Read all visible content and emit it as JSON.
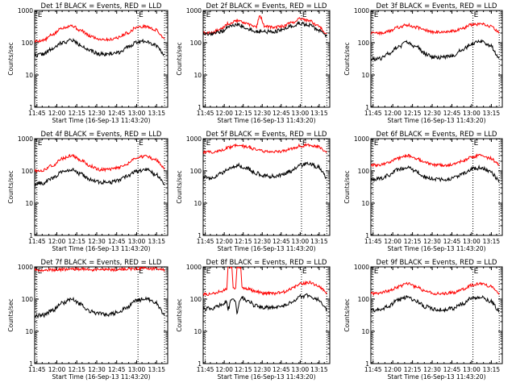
{
  "colors": {
    "events": "#000000",
    "lld": "#ff0000",
    "axis": "#000000",
    "background": "#ffffff"
  },
  "chart_data": [
    {
      "type": "line",
      "title": "Det 1f BLACK = Events, RED = LLD",
      "xlabel": "Start Time (16-Sep-13 11:43:20)",
      "ylabel": "Counts/sec",
      "xlim": [
        "11:43:20",
        "13:23:20"
      ],
      "ylim": [
        1,
        1000
      ],
      "yscale": "log",
      "xtick_labels": [
        "11:45",
        "12:00",
        "12:15",
        "12:30",
        "12:45",
        "13:00",
        "13:15"
      ],
      "ytick_labels": [
        "1",
        "10",
        "100",
        "1000"
      ],
      "markers": [
        {
          "time": "11:45",
          "label": "E"
        },
        {
          "time": "13:01",
          "label": "E"
        },
        {
          "time": "13:21",
          "label": ""
        }
      ],
      "x": [
        "11:43",
        "11:50",
        "11:57",
        "12:04",
        "12:11",
        "12:18",
        "12:25",
        "12:32",
        "12:39",
        "12:46",
        "12:53",
        "13:00",
        "13:07",
        "13:14",
        "13:21"
      ],
      "series": [
        {
          "name": "LLD",
          "color": "red",
          "values": [
            110,
            120,
            180,
            290,
            340,
            240,
            160,
            130,
            125,
            145,
            200,
            300,
            320,
            250,
            140
          ]
        },
        {
          "name": "Events",
          "color": "black",
          "values": [
            40,
            45,
            65,
            100,
            120,
            85,
            55,
            45,
            45,
            50,
            70,
            105,
            115,
            85,
            45
          ]
        }
      ]
    },
    {
      "type": "line",
      "title": "Det 2f BLACK = Events, RED = LLD",
      "xlabel": "Start Time (16-Sep-13 11:43:20)",
      "ylabel": "Counts/sec",
      "xlim": [
        "11:43:20",
        "13:23:20"
      ],
      "ylim": [
        1,
        1000
      ],
      "yscale": "log",
      "xtick_labels": [
        "11:45",
        "12:00",
        "12:15",
        "12:30",
        "12:45",
        "13:00",
        "13:15"
      ],
      "ytick_labels": [
        "1",
        "10",
        "100",
        "1000"
      ],
      "markers": [
        {
          "time": "11:45",
          "label": "E"
        },
        {
          "time": "13:01",
          "label": "E"
        },
        {
          "time": "13:21",
          "label": ""
        }
      ],
      "x": [
        "11:43",
        "11:50",
        "11:57",
        "12:04",
        "12:11",
        "12:18",
        "12:25",
        "12:28",
        "12:32",
        "12:39",
        "12:46",
        "12:53",
        "13:00",
        "13:07",
        "13:14",
        "13:21"
      ],
      "series": [
        {
          "name": "LLD",
          "color": "red",
          "values": [
            200,
            200,
            260,
            400,
            480,
            380,
            300,
            650,
            330,
            300,
            320,
            420,
            560,
            480,
            330,
            200
          ]
        },
        {
          "name": "Events",
          "color": "black",
          "values": [
            180,
            180,
            220,
            320,
            360,
            280,
            220,
            230,
            220,
            220,
            250,
            320,
            400,
            350,
            250,
            160
          ]
        }
      ]
    },
    {
      "type": "line",
      "title": "Det 3f BLACK = Events, RED = LLD",
      "xlabel": "Start Time (16-Sep-13 11:43:20)",
      "ylabel": "Counts/sec",
      "xlim": [
        "11:43:20",
        "13:23:20"
      ],
      "ylim": [
        1,
        1000
      ],
      "yscale": "log",
      "xtick_labels": [
        "11:45",
        "12:00",
        "12:15",
        "12:30",
        "12:45",
        "13:00",
        "13:15"
      ],
      "ytick_labels": [
        "1",
        "10",
        "100",
        "1000"
      ],
      "markers": [
        {
          "time": "11:45",
          "label": "E"
        },
        {
          "time": "13:01",
          "label": "E"
        },
        {
          "time": "13:21",
          "label": ""
        }
      ],
      "x": [
        "11:43",
        "11:50",
        "11:57",
        "12:04",
        "12:11",
        "12:18",
        "12:25",
        "12:32",
        "12:39",
        "12:46",
        "12:53",
        "13:00",
        "13:07",
        "13:14",
        "13:21"
      ],
      "series": [
        {
          "name": "LLD",
          "color": "red",
          "values": [
            200,
            200,
            230,
            300,
            360,
            300,
            240,
            210,
            210,
            230,
            280,
            360,
            380,
            320,
            210
          ]
        },
        {
          "name": "Events",
          "color": "black",
          "values": [
            30,
            32,
            45,
            75,
            100,
            75,
            45,
            35,
            35,
            40,
            60,
            95,
            110,
            80,
            35
          ]
        }
      ]
    },
    {
      "type": "line",
      "title": "Det 4f BLACK = Events, RED = LLD",
      "xlabel": "Start Time (16-Sep-13 11:43:20)",
      "ylabel": "Counts/sec",
      "xlim": [
        "11:43:20",
        "13:23:20"
      ],
      "ylim": [
        1,
        1000
      ],
      "yscale": "log",
      "xtick_labels": [
        "11:45",
        "12:00",
        "12:15",
        "12:30",
        "12:45",
        "13:00",
        "13:15"
      ],
      "ytick_labels": [
        "1",
        "10",
        "100",
        "1000"
      ],
      "markers": [
        {
          "time": "11:45",
          "label": "E"
        },
        {
          "time": "13:01",
          "label": "E"
        },
        {
          "time": "13:21",
          "label": ""
        }
      ],
      "x": [
        "11:43",
        "11:50",
        "11:57",
        "12:04",
        "12:11",
        "12:18",
        "12:25",
        "12:32",
        "12:39",
        "12:46",
        "12:53",
        "13:00",
        "13:07",
        "13:14",
        "13:21"
      ],
      "series": [
        {
          "name": "LLD",
          "color": "red",
          "values": [
            100,
            105,
            150,
            240,
            300,
            220,
            140,
            110,
            110,
            125,
            170,
            260,
            290,
            220,
            120
          ]
        },
        {
          "name": "Events",
          "color": "black",
          "values": [
            40,
            42,
            60,
            95,
            110,
            80,
            52,
            45,
            44,
            50,
            68,
            100,
            110,
            80,
            40
          ]
        }
      ]
    },
    {
      "type": "line",
      "title": "Det 5f BLACK = Events, RED = LLD",
      "xlabel": "Start Time (16-Sep-13 11:43:20)",
      "ylabel": "Counts/sec",
      "xlim": [
        "11:43:20",
        "13:23:20"
      ],
      "ylim": [
        1,
        1000
      ],
      "yscale": "log",
      "xtick_labels": [
        "11:45",
        "12:00",
        "12:15",
        "12:30",
        "12:45",
        "13:00",
        "13:15"
      ],
      "ytick_labels": [
        "1",
        "10",
        "100",
        "1000"
      ],
      "markers": [
        {
          "time": "11:45",
          "label": "E"
        },
        {
          "time": "13:01",
          "label": "E"
        },
        {
          "time": "13:21",
          "label": ""
        }
      ],
      "x": [
        "11:43",
        "11:50",
        "11:57",
        "12:04",
        "12:11",
        "12:18",
        "12:25",
        "12:32",
        "12:39",
        "12:46",
        "12:53",
        "13:00",
        "13:07",
        "13:14",
        "13:21"
      ],
      "series": [
        {
          "name": "LLD",
          "color": "red",
          "values": [
            380,
            380,
            420,
            540,
            620,
            560,
            460,
            400,
            390,
            410,
            480,
            600,
            640,
            560,
            400
          ]
        },
        {
          "name": "Events",
          "color": "black",
          "values": [
            60,
            62,
            80,
            120,
            150,
            120,
            85,
            70,
            68,
            75,
            100,
            150,
            170,
            130,
            65
          ]
        }
      ]
    },
    {
      "type": "line",
      "title": "Det 6f BLACK = Events, RED = LLD",
      "xlabel": "Start Time (16-Sep-13 11:43:20)",
      "ylabel": "Counts/sec",
      "xlim": [
        "11:43:20",
        "13:23:20"
      ],
      "ylim": [
        1,
        1000
      ],
      "yscale": "log",
      "xtick_labels": [
        "11:45",
        "12:00",
        "12:15",
        "12:30",
        "12:45",
        "13:00",
        "13:15"
      ],
      "ytick_labels": [
        "1",
        "10",
        "100",
        "1000"
      ],
      "markers": [
        {
          "time": "11:45",
          "label": "E"
        },
        {
          "time": "13:01",
          "label": "E"
        },
        {
          "time": "13:21",
          "label": ""
        }
      ],
      "x": [
        "11:43",
        "11:50",
        "11:57",
        "12:04",
        "12:11",
        "12:18",
        "12:25",
        "12:32",
        "12:39",
        "12:46",
        "12:53",
        "13:00",
        "13:07",
        "13:14",
        "13:21"
      ],
      "series": [
        {
          "name": "LLD",
          "color": "red",
          "values": [
            150,
            150,
            180,
            250,
            300,
            240,
            180,
            155,
            150,
            160,
            200,
            270,
            310,
            250,
            160
          ]
        },
        {
          "name": "Events",
          "color": "black",
          "values": [
            55,
            57,
            75,
            110,
            125,
            95,
            65,
            55,
            54,
            60,
            80,
            115,
            125,
            95,
            50
          ]
        }
      ]
    },
    {
      "type": "line",
      "title": "Det 7f BLACK = Events, RED = LLD",
      "xlabel": "Start Time (16-Sep-13 11:43:20)",
      "ylabel": "Counts/sec",
      "xlim": [
        "11:43:20",
        "13:23:20"
      ],
      "ylim": [
        1,
        1000
      ],
      "yscale": "log",
      "xtick_labels": [
        "11:45",
        "12:00",
        "12:15",
        "12:30",
        "12:45",
        "13:00",
        "13:15"
      ],
      "ytick_labels": [
        "1",
        "10",
        "100",
        "1000"
      ],
      "markers": [
        {
          "time": "11:45",
          "label": "E"
        },
        {
          "time": "13:01",
          "label": "E"
        },
        {
          "time": "13:21",
          "label": ""
        }
      ],
      "x": [
        "11:43",
        "11:50",
        "11:57",
        "12:04",
        "12:11",
        "12:18",
        "12:25",
        "12:32",
        "12:39",
        "12:46",
        "12:53",
        "13:00",
        "13:07",
        "13:14",
        "13:21"
      ],
      "series": [
        {
          "name": "LLD",
          "color": "red",
          "values": [
            780,
            790,
            800,
            830,
            860,
            840,
            820,
            810,
            810,
            820,
            850,
            880,
            900,
            870,
            800
          ]
        },
        {
          "name": "Events",
          "color": "black",
          "values": [
            30,
            32,
            45,
            75,
            100,
            70,
            42,
            35,
            34,
            38,
            58,
            90,
            105,
            78,
            35
          ]
        }
      ]
    },
    {
      "type": "line",
      "title": "Det 8f BLACK = Events, RED = LLD",
      "xlabel": "Start Time (16-Sep-13 11:43:20)",
      "ylabel": "Counts/sec",
      "xlim": [
        "11:43:20",
        "13:23:20"
      ],
      "ylim": [
        1,
        1000
      ],
      "yscale": "log",
      "xtick_labels": [
        "11:45",
        "12:00",
        "12:15",
        "12:30",
        "12:45",
        "13:00",
        "13:15"
      ],
      "ytick_labels": [
        "1",
        "10",
        "100",
        "1000"
      ],
      "markers": [
        {
          "time": "11:45",
          "label": "E"
        },
        {
          "time": "13:01",
          "label": "E"
        },
        {
          "time": "13:21",
          "label": ""
        }
      ],
      "x": [
        "11:43",
        "11:50",
        "11:57",
        "12:02",
        "12:03",
        "12:06",
        "12:07",
        "12:09",
        "12:10",
        "12:13",
        "12:14",
        "12:18",
        "12:25",
        "12:32",
        "12:39",
        "12:46",
        "12:53",
        "13:00",
        "13:07",
        "13:14",
        "13:21"
      ],
      "series": [
        {
          "name": "LLD",
          "color": "red",
          "values": [
            140,
            145,
            170,
            200,
            1000,
            1000,
            210,
            220,
            1000,
            1000,
            230,
            210,
            170,
            150,
            150,
            165,
            210,
            300,
            330,
            260,
            160
          ]
        },
        {
          "name": "Events",
          "color": "black",
          "values": [
            50,
            52,
            65,
            80,
            50,
            100,
            90,
            80,
            40,
            100,
            110,
            90,
            62,
            55,
            54,
            60,
            80,
            120,
            130,
            95,
            50
          ]
        }
      ]
    },
    {
      "type": "line",
      "title": "Det 9f BLACK = Events, RED = LLD",
      "xlabel": "Start Time (16-Sep-13 11:43:20)",
      "ylabel": "Counts/sec",
      "xlim": [
        "11:43:20",
        "13:23:20"
      ],
      "ylim": [
        1,
        1000
      ],
      "yscale": "log",
      "xtick_labels": [
        "11:45",
        "12:00",
        "12:15",
        "12:30",
        "12:45",
        "13:00",
        "13:15"
      ],
      "ytick_labels": [
        "1",
        "10",
        "100",
        "1000"
      ],
      "markers": [
        {
          "time": "11:45",
          "label": "E"
        },
        {
          "time": "13:01",
          "label": "E"
        },
        {
          "time": "13:21",
          "label": ""
        }
      ],
      "x": [
        "11:43",
        "11:50",
        "11:57",
        "12:04",
        "12:11",
        "12:18",
        "12:25",
        "12:32",
        "12:39",
        "12:46",
        "12:53",
        "13:00",
        "13:07",
        "13:14",
        "13:21"
      ],
      "series": [
        {
          "name": "LLD",
          "color": "red",
          "values": [
            150,
            150,
            180,
            240,
            300,
            240,
            175,
            150,
            148,
            160,
            200,
            270,
            310,
            250,
            155
          ]
        },
        {
          "name": "Events",
          "color": "black",
          "values": [
            45,
            47,
            62,
            95,
            115,
            88,
            58,
            48,
            47,
            52,
            72,
            105,
            118,
            88,
            45
          ]
        }
      ]
    }
  ]
}
